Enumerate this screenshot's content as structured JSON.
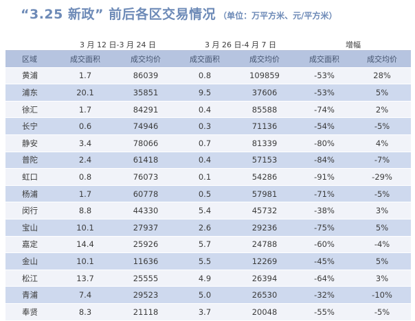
{
  "title": {
    "main": "“3.25 新政” 前后各区交易情况",
    "unit": "（单位：万平方米、元/平方米）"
  },
  "groups": {
    "period1": "3 月 12 日-3 月 24 日",
    "period2": "3 月 26 日-4 月 7 日",
    "change": "增幅"
  },
  "columns": [
    "区域",
    "成交面积",
    "成交均价",
    "成交面积",
    "成交均价",
    "成交面积",
    "成交均价"
  ],
  "rows": [
    [
      "黄浦",
      "1.7",
      "86039",
      "0.8",
      "109859",
      "-53%",
      "28%"
    ],
    [
      "浦东",
      "20.1",
      "35851",
      "9.5",
      "37606",
      "-53%",
      "5%"
    ],
    [
      "徐汇",
      "1.7",
      "84291",
      "0.4",
      "85588",
      "-74%",
      "2%"
    ],
    [
      "长宁",
      "0.6",
      "74946",
      "0.3",
      "71136",
      "-54%",
      "-5%"
    ],
    [
      "静安",
      "3.4",
      "78066",
      "0.7",
      "81339",
      "-80%",
      "4%"
    ],
    [
      "普陀",
      "2.4",
      "61418",
      "0.4",
      "57153",
      "-84%",
      "-7%"
    ],
    [
      "虹口",
      "0.8",
      "76073",
      "0.1",
      "54286",
      "-91%",
      "-29%"
    ],
    [
      "杨浦",
      "1.7",
      "60778",
      "0.5",
      "57981",
      "-71%",
      "-5%"
    ],
    [
      "闵行",
      "8.8",
      "44330",
      "5.4",
      "45732",
      "-38%",
      "3%"
    ],
    [
      "宝山",
      "10.1",
      "27937",
      "2.6",
      "29236",
      "-75%",
      "5%"
    ],
    [
      "嘉定",
      "14.4",
      "25926",
      "5.7",
      "24788",
      "-60%",
      "-4%"
    ],
    [
      "金山",
      "10.1",
      "11636",
      "5.5",
      "12269",
      "-45%",
      "5%"
    ],
    [
      "松江",
      "13.7",
      "25555",
      "4.9",
      "26394",
      "-64%",
      "3%"
    ],
    [
      "青浦",
      "7.4",
      "29523",
      "5.0",
      "26530",
      "-32%",
      "-10%"
    ],
    [
      "奉贤",
      "8.3",
      "21118",
      "3.7",
      "20048",
      "-55%",
      "-5%"
    ]
  ],
  "colors": {
    "title": "#6d8ab7",
    "header_row": "#b6c4e0",
    "row_dark": "#ced9ee",
    "row_light": "#f1f3f9"
  }
}
